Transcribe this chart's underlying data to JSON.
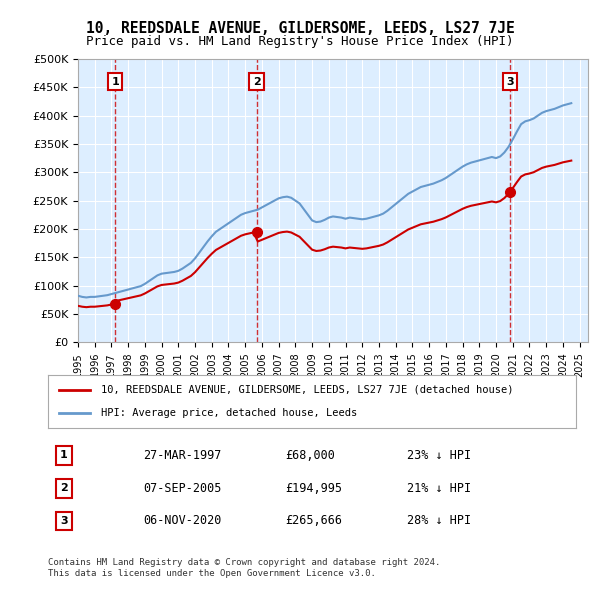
{
  "title": "10, REEDSDALE AVENUE, GILDERSOME, LEEDS, LS27 7JE",
  "subtitle": "Price paid vs. HM Land Registry's House Price Index (HPI)",
  "title_fontsize": 11,
  "subtitle_fontsize": 9.5,
  "ylabel_ticks": [
    "£0",
    "£50K",
    "£100K",
    "£150K",
    "£200K",
    "£250K",
    "£300K",
    "£350K",
    "£400K",
    "£450K",
    "£500K"
  ],
  "ytick_values": [
    0,
    50000,
    100000,
    150000,
    200000,
    250000,
    300000,
    350000,
    400000,
    450000,
    500000
  ],
  "ylim": [
    0,
    500000
  ],
  "xlim_start": 1995.0,
  "xlim_end": 2025.5,
  "transactions": [
    {
      "num": 1,
      "date": "27-MAR-1997",
      "price": 68000,
      "x": 1997.23
    },
    {
      "num": 2,
      "date": "07-SEP-2005",
      "price": 194995,
      "x": 2005.68
    },
    {
      "num": 3,
      "date": "06-NOV-2020",
      "price": 265666,
      "x": 2020.84
    }
  ],
  "legend_line1": "10, REEDSDALE AVENUE, GILDERSOME, LEEDS, LS27 7JE (detached house)",
  "legend_line2": "HPI: Average price, detached house, Leeds",
  "footer1": "Contains HM Land Registry data © Crown copyright and database right 2024.",
  "footer2": "This data is licensed under the Open Government Licence v3.0.",
  "red_color": "#cc0000",
  "blue_color": "#6699cc",
  "bg_color": "#ddeeff",
  "hpi_data_x": [
    1995.0,
    1995.25,
    1995.5,
    1995.75,
    1996.0,
    1996.25,
    1996.5,
    1996.75,
    1997.0,
    1997.25,
    1997.5,
    1997.75,
    1998.0,
    1998.25,
    1998.5,
    1998.75,
    1999.0,
    1999.25,
    1999.5,
    1999.75,
    2000.0,
    2000.25,
    2000.5,
    2000.75,
    2001.0,
    2001.25,
    2001.5,
    2001.75,
    2002.0,
    2002.25,
    2002.5,
    2002.75,
    2003.0,
    2003.25,
    2003.5,
    2003.75,
    2004.0,
    2004.25,
    2004.5,
    2004.75,
    2005.0,
    2005.25,
    2005.5,
    2005.75,
    2006.0,
    2006.25,
    2006.5,
    2006.75,
    2007.0,
    2007.25,
    2007.5,
    2007.75,
    2008.0,
    2008.25,
    2008.5,
    2008.75,
    2009.0,
    2009.25,
    2009.5,
    2009.75,
    2010.0,
    2010.25,
    2010.5,
    2010.75,
    2011.0,
    2011.25,
    2011.5,
    2011.75,
    2012.0,
    2012.25,
    2012.5,
    2012.75,
    2013.0,
    2013.25,
    2013.5,
    2013.75,
    2014.0,
    2014.25,
    2014.5,
    2014.75,
    2015.0,
    2015.25,
    2015.5,
    2015.75,
    2016.0,
    2016.25,
    2016.5,
    2016.75,
    2017.0,
    2017.25,
    2017.5,
    2017.75,
    2018.0,
    2018.25,
    2018.5,
    2018.75,
    2019.0,
    2019.25,
    2019.5,
    2019.75,
    2020.0,
    2020.25,
    2020.5,
    2020.75,
    2021.0,
    2021.25,
    2021.5,
    2021.75,
    2022.0,
    2022.25,
    2022.5,
    2022.75,
    2023.0,
    2023.25,
    2023.5,
    2023.75,
    2024.0,
    2024.25,
    2024.5
  ],
  "hpi_data_y": [
    82000,
    80000,
    79000,
    80000,
    80000,
    81000,
    82000,
    83000,
    85000,
    87000,
    89000,
    91000,
    93000,
    95000,
    97000,
    99000,
    103000,
    108000,
    113000,
    118000,
    121000,
    122000,
    123000,
    124000,
    126000,
    130000,
    135000,
    140000,
    148000,
    158000,
    168000,
    178000,
    187000,
    195000,
    200000,
    205000,
    210000,
    215000,
    220000,
    225000,
    228000,
    230000,
    232000,
    234000,
    238000,
    242000,
    246000,
    250000,
    254000,
    256000,
    257000,
    255000,
    250000,
    245000,
    235000,
    225000,
    215000,
    212000,
    213000,
    216000,
    220000,
    222000,
    221000,
    220000,
    218000,
    220000,
    219000,
    218000,
    217000,
    218000,
    220000,
    222000,
    224000,
    227000,
    232000,
    238000,
    244000,
    250000,
    256000,
    262000,
    266000,
    270000,
    274000,
    276000,
    278000,
    280000,
    283000,
    286000,
    290000,
    295000,
    300000,
    305000,
    310000,
    314000,
    317000,
    319000,
    321000,
    323000,
    325000,
    327000,
    325000,
    328000,
    335000,
    345000,
    358000,
    372000,
    385000,
    390000,
    392000,
    395000,
    400000,
    405000,
    408000,
    410000,
    412000,
    415000,
    418000,
    420000,
    422000
  ],
  "price_line_x": [
    1995.0,
    1997.23,
    2005.68,
    2020.84,
    2024.5
  ],
  "price_line_y": [
    55000,
    68000,
    194995,
    265666,
    305000
  ]
}
